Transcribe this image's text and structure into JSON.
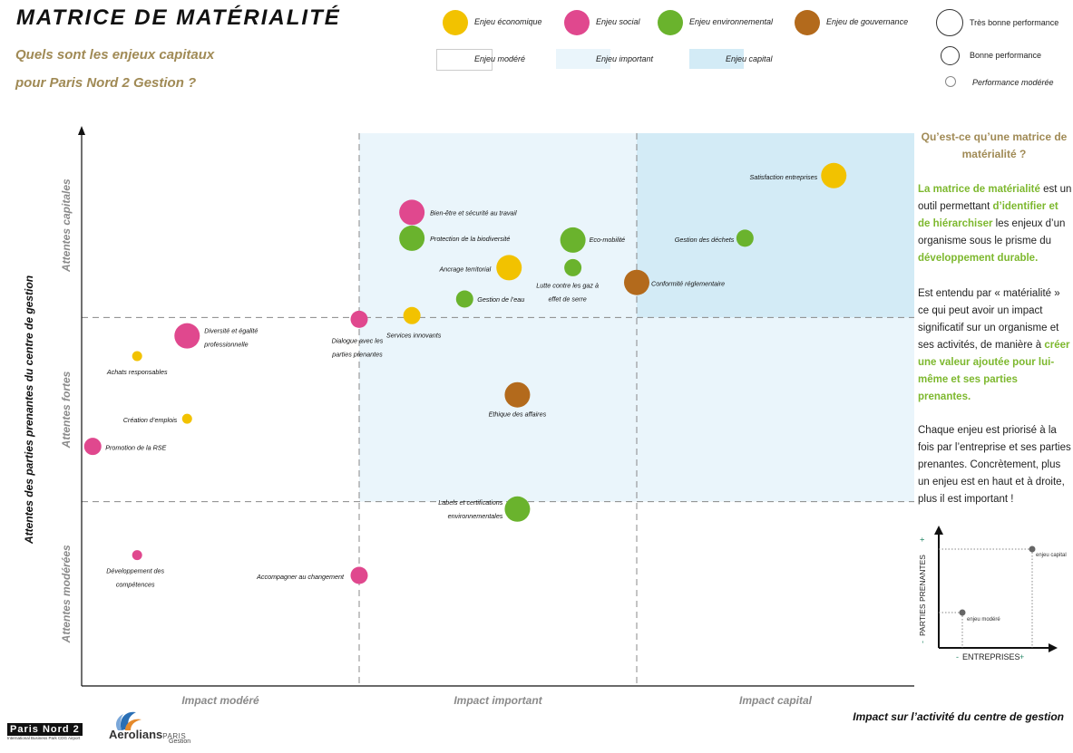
{
  "header": {
    "title": "MATRICE DE MATÉRIALITÉ",
    "subtitle_line1": "Quels sont les enjeux capitaux",
    "subtitle_line2": "pour Paris Nord 2 Gestion ?"
  },
  "legend": {
    "categories": [
      {
        "label": "Enjeu économique",
        "color": "#f2c200"
      },
      {
        "label": "Enjeu social",
        "color": "#e0488e"
      },
      {
        "label": "Enjeu environnemental",
        "color": "#6ab32d"
      },
      {
        "label": "Enjeu de gouvernance",
        "color": "#b36a1c"
      }
    ],
    "zones": [
      {
        "label": "Enjeu modéré",
        "color": "#ffffff"
      },
      {
        "label": "Enjeu important",
        "color": "#eaf5fb"
      },
      {
        "label": "Enjeu capital",
        "color": "#d3ebf6"
      }
    ],
    "sizes": [
      {
        "label": "Très bonne performance"
      },
      {
        "label": "Bonne performance"
      },
      {
        "label": "Performance modérée"
      }
    ]
  },
  "chart_data": {
    "type": "scatter",
    "title": "",
    "xlabel": "Impact sur l’activité du centre de gestion",
    "ylabel": "Attentes des parties prenantes du centre de gestion",
    "x_zones": [
      "Impact modéré",
      "Impact important",
      "Impact capital"
    ],
    "y_zones": [
      "Attentes modérées",
      "Attentes fortes",
      "Attentes capitales"
    ],
    "xlim": [
      0,
      3
    ],
    "ylim": [
      0,
      3
    ],
    "grid": true,
    "points": [
      {
        "label": "Satisfaction entreprises",
        "x": 2.71,
        "y": 2.77,
        "category": "économique",
        "performance": "très bonne"
      },
      {
        "label": "Gestion des déchets",
        "x": 2.39,
        "y": 2.43,
        "category": "environnemental",
        "performance": "bonne"
      },
      {
        "label": "Conformité réglementaire",
        "x": 2.0,
        "y": 2.19,
        "category": "gouvernance",
        "performance": "très bonne"
      },
      {
        "label": "Eco-mobilité",
        "x": 1.77,
        "y": 2.42,
        "category": "environnemental",
        "performance": "très bonne"
      },
      {
        "label": "Lutte contre les gaz à effet de serre",
        "x": 1.77,
        "y": 2.27,
        "category": "environnemental",
        "performance": "bonne"
      },
      {
        "label": "Bien-être et sécurité au travail",
        "x": 1.19,
        "y": 2.57,
        "category": "social",
        "performance": "très bonne"
      },
      {
        "label": "Protection de la biodiversité",
        "x": 1.19,
        "y": 2.43,
        "category": "environnemental",
        "performance": "très bonne"
      },
      {
        "label": "Ancrage territorial",
        "x": 1.54,
        "y": 2.27,
        "category": "économique",
        "performance": "très bonne"
      },
      {
        "label": "Gestion de l’eau",
        "x": 1.38,
        "y": 2.1,
        "category": "environnemental",
        "performance": "bonne"
      },
      {
        "label": "Services innovants",
        "x": 1.19,
        "y": 2.01,
        "category": "économique",
        "performance": "bonne"
      },
      {
        "label": "Dialogue avec les parties prenantes",
        "x": 1.0,
        "y": 1.99,
        "category": "social",
        "performance": "bonne"
      },
      {
        "label": "Diversité et égalité professionnelle",
        "x": 0.38,
        "y": 1.9,
        "category": "social",
        "performance": "très bonne"
      },
      {
        "label": "Achats responsables",
        "x": 0.2,
        "y": 1.79,
        "category": "économique",
        "performance": "modérée"
      },
      {
        "label": "Ethique des affaires",
        "x": 1.57,
        "y": 1.58,
        "category": "gouvernance",
        "performance": "très bonne"
      },
      {
        "label": "Création d’emplois",
        "x": 0.38,
        "y": 1.45,
        "category": "économique",
        "performance": "modérée"
      },
      {
        "label": "Promotion de la RSE",
        "x": 0.04,
        "y": 1.3,
        "category": "social",
        "performance": "bonne"
      },
      {
        "label": "Labels et certifications environnementales",
        "x": 1.57,
        "y": 0.96,
        "category": "environnemental",
        "performance": "très bonne"
      },
      {
        "label": "Développement des compétences",
        "x": 0.2,
        "y": 0.71,
        "category": "social",
        "performance": "modérée"
      },
      {
        "label": "Accompagner au changement",
        "x": 1.0,
        "y": 0.6,
        "category": "social",
        "performance": "bonne"
      }
    ]
  },
  "sidebar": {
    "heading": "Qu’est-ce qu’une matrice de matérialité ?",
    "p1_a": "La matrice de matérialité",
    "p1_b": " est un outil permettant ",
    "p1_c": "d’identifier et de hiérarchiser",
    "p1_d": " les enjeux d’un organisme sous le prisme du ",
    "p1_e": "développement durable.",
    "p2_a": "Est entendu par « matérialité » ce qui peut avoir un impact significatif sur un organisme et ses activités, de manière à ",
    "p2_b": "créer une valeur ajoutée pour lui-même et ses parties prenantes.",
    "p3": "Chaque enjeu est priorisé à la fois par l’entreprise et ses parties prenantes. Concrètement, plus un enjeu est en haut et à droite, plus il est important !"
  },
  "mini_chart": {
    "x_label": "ENTREPRISES",
    "y_label": "PARTIES PRENANTES",
    "minus": "-",
    "plus": "+",
    "point_capital": "enjeu capital",
    "point_modere": "enjeu modéré"
  },
  "logos": {
    "pn2": "Paris Nord 2",
    "pn2_sub": "International Business Park CDG Airport",
    "aerolians": "Aerolians",
    "aerolians_paris": "PARIS",
    "aerolians_gestion": "Gestion"
  }
}
